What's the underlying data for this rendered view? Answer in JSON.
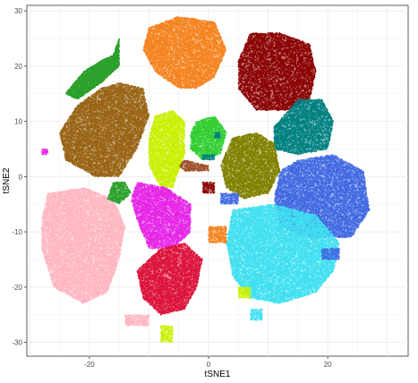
{
  "chart_data": {
    "type": "scatter",
    "xlabel": "tSNE1",
    "ylabel": "tSNE2",
    "xlim": [
      -30.5,
      33.5
    ],
    "ylim": [
      -32.5,
      31
    ],
    "x_ticks": [
      -20,
      0,
      20
    ],
    "y_ticks": [
      -30,
      -20,
      -10,
      0,
      10,
      20,
      30
    ],
    "x_tick_labels": [
      "-20",
      "0",
      "20"
    ],
    "y_tick_labels": [
      "-30",
      "-20",
      "-10",
      "0",
      "10",
      "20",
      "30"
    ],
    "grid": true,
    "legend": "none",
    "series": [
      {
        "color": "#f4831f",
        "poly": [
          [
            -10,
            27
          ],
          [
            -5,
            29
          ],
          [
            1,
            28
          ],
          [
            3,
            23
          ],
          [
            1,
            18
          ],
          [
            -2,
            16
          ],
          [
            -5,
            16
          ],
          [
            -9,
            19
          ],
          [
            -11,
            23
          ]
        ]
      },
      {
        "color": "#8b0000",
        "poly": [
          [
            7,
            26
          ],
          [
            12,
            26
          ],
          [
            17,
            24
          ],
          [
            18,
            19
          ],
          [
            17,
            14
          ],
          [
            13,
            12
          ],
          [
            8,
            12
          ],
          [
            5,
            16
          ],
          [
            5,
            21
          ]
        ]
      },
      {
        "color": "#008080",
        "poly": [
          [
            15,
            14
          ],
          [
            19,
            14
          ],
          [
            21,
            10
          ],
          [
            20,
            5
          ],
          [
            15,
            4
          ],
          [
            11,
            5
          ],
          [
            11,
            9
          ]
        ]
      },
      {
        "color": "#2ca02c",
        "poly": [
          [
            -21,
            19
          ],
          [
            -18,
            21
          ],
          [
            -16,
            22
          ],
          [
            -15,
            25
          ],
          [
            -15,
            20
          ],
          [
            -18,
            17
          ],
          [
            -22,
            14
          ],
          [
            -24,
            15
          ]
        ]
      },
      {
        "color": "#996515",
        "poly": [
          [
            -15,
            17
          ],
          [
            -11,
            16
          ],
          [
            -10,
            11
          ],
          [
            -12,
            5
          ],
          [
            -15,
            0
          ],
          [
            -19,
            0
          ],
          [
            -24,
            3
          ],
          [
            -25,
            8
          ],
          [
            -22,
            13
          ],
          [
            -18,
            16
          ]
        ]
      },
      {
        "color": "#c8f000",
        "poly": [
          [
            -9,
            11
          ],
          [
            -6,
            12
          ],
          [
            -4,
            10
          ],
          [
            -4,
            4
          ],
          [
            -6,
            -2
          ],
          [
            -8,
            -2
          ],
          [
            -10,
            2
          ],
          [
            -10,
            7
          ]
        ]
      },
      {
        "color": "#32cd32",
        "poly": [
          [
            -2,
            10
          ],
          [
            1,
            11
          ],
          [
            3,
            8
          ],
          [
            2,
            4
          ],
          [
            -1,
            3
          ],
          [
            -3,
            5
          ],
          [
            -3,
            8
          ]
        ]
      },
      {
        "color": "#808000",
        "poly": [
          [
            4,
            7
          ],
          [
            8,
            8
          ],
          [
            11,
            6
          ],
          [
            12,
            1
          ],
          [
            10,
            -3
          ],
          [
            6,
            -4
          ],
          [
            3,
            -2
          ],
          [
            2,
            2
          ]
        ]
      },
      {
        "color": "#4169e1",
        "poly": [
          [
            15,
            3
          ],
          [
            21,
            4
          ],
          [
            26,
            1
          ],
          [
            27,
            -6
          ],
          [
            24,
            -11
          ],
          [
            17,
            -11
          ],
          [
            12,
            -9
          ],
          [
            11,
            -4
          ],
          [
            12,
            1
          ]
        ]
      },
      {
        "color": "#40e0f0",
        "poly": [
          [
            4,
            -6
          ],
          [
            11,
            -5
          ],
          [
            18,
            -7
          ],
          [
            22,
            -12
          ],
          [
            21,
            -17
          ],
          [
            18,
            -21
          ],
          [
            12,
            -23
          ],
          [
            7,
            -22
          ],
          [
            4,
            -18
          ],
          [
            3,
            -12
          ]
        ]
      },
      {
        "color": "#ffb6c1",
        "poly": [
          [
            -27,
            -3
          ],
          [
            -21,
            -2
          ],
          [
            -16,
            -4
          ],
          [
            -14,
            -9
          ],
          [
            -15,
            -15
          ],
          [
            -17,
            -21
          ],
          [
            -21,
            -23
          ],
          [
            -26,
            -20
          ],
          [
            -28,
            -13
          ],
          [
            -28,
            -8
          ]
        ]
      },
      {
        "color": "#e627e6",
        "poly": [
          [
            -12,
            -1
          ],
          [
            -7,
            -2
          ],
          [
            -3,
            -5
          ],
          [
            -3,
            -10
          ],
          [
            -6,
            -13
          ],
          [
            -10,
            -13
          ],
          [
            -12,
            -8
          ],
          [
            -13,
            -4
          ]
        ]
      },
      {
        "color": "#dc143c",
        "poly": [
          [
            -8,
            -13
          ],
          [
            -4,
            -12
          ],
          [
            -1,
            -15
          ],
          [
            -2,
            -20
          ],
          [
            -4,
            -24
          ],
          [
            -8,
            -25
          ],
          [
            -11,
            -22
          ],
          [
            -12,
            -17
          ]
        ]
      },
      {
        "color": "#a0522d",
        "poly": [
          [
            -4,
            3
          ],
          [
            0,
            2
          ],
          [
            0,
            1
          ],
          [
            -4,
            1
          ],
          [
            -5,
            2
          ]
        ]
      },
      {
        "color": "#f4831f",
        "poly": [
          [
            0,
            -9
          ],
          [
            3,
            -9
          ],
          [
            3,
            -12
          ],
          [
            0,
            -12
          ]
        ]
      },
      {
        "color": "#2ca02c",
        "poly": [
          [
            -16,
            -1
          ],
          [
            -14,
            -1
          ],
          [
            -13,
            -3
          ],
          [
            -15,
            -5
          ],
          [
            -17,
            -4
          ]
        ]
      },
      {
        "color": "#008080",
        "poly": [
          [
            1,
            8
          ],
          [
            2,
            8
          ],
          [
            2,
            7
          ],
          [
            1,
            7
          ]
        ]
      },
      {
        "color": "#008080",
        "poly": [
          [
            -1,
            4
          ],
          [
            1,
            4
          ],
          [
            1,
            3
          ],
          [
            -1,
            3
          ]
        ]
      },
      {
        "color": "#8b0000",
        "poly": [
          [
            -1,
            -1
          ],
          [
            1,
            -1
          ],
          [
            1,
            -3
          ],
          [
            -1,
            -3
          ]
        ]
      },
      {
        "color": "#4169e1",
        "poly": [
          [
            2,
            -3
          ],
          [
            5,
            -3
          ],
          [
            5,
            -5
          ],
          [
            2,
            -5
          ]
        ]
      },
      {
        "color": "#ffb6c1",
        "poly": [
          [
            -14,
            -25
          ],
          [
            -10,
            -25
          ],
          [
            -10,
            -27
          ],
          [
            -14,
            -27
          ]
        ]
      },
      {
        "color": "#c8f000",
        "poly": [
          [
            -8,
            -27
          ],
          [
            -6,
            -27
          ],
          [
            -6,
            -30
          ],
          [
            -8,
            -30
          ]
        ]
      },
      {
        "color": "#c8f000",
        "poly": [
          [
            5,
            -20
          ],
          [
            7,
            -20
          ],
          [
            7,
            -22
          ],
          [
            5,
            -22
          ]
        ]
      },
      {
        "color": "#40e0f0",
        "poly": [
          [
            7,
            -24
          ],
          [
            9,
            -24
          ],
          [
            9,
            -26
          ],
          [
            7,
            -26
          ]
        ]
      },
      {
        "color": "#4169e1",
        "poly": [
          [
            19,
            -13
          ],
          [
            22,
            -13
          ],
          [
            22,
            -15
          ],
          [
            19,
            -15
          ]
        ]
      },
      {
        "color": "#e627e6",
        "poly": [
          [
            -28,
            5
          ],
          [
            -27,
            5
          ],
          [
            -27,
            4
          ],
          [
            -28,
            4
          ]
        ]
      }
    ]
  }
}
